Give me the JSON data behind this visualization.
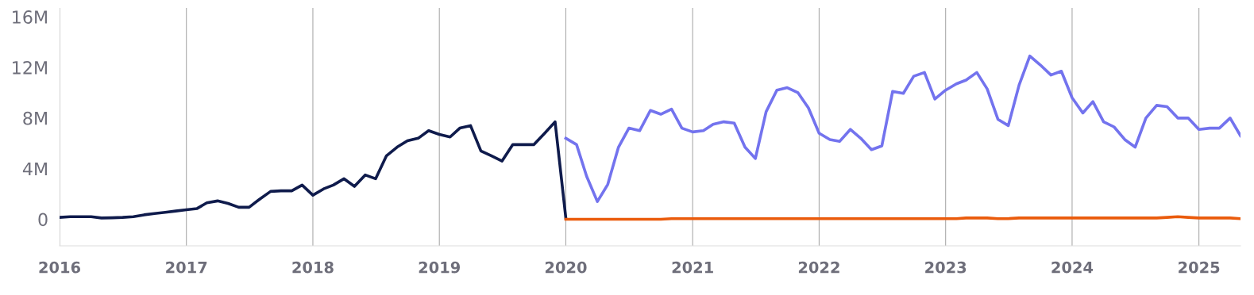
{
  "chart_data": {
    "type": "line",
    "grid": "x",
    "marker": "none",
    "line_style": "solid",
    "xlim": [
      "2016-01-01",
      "2025-05-01"
    ],
    "xticks": [
      {
        "value": "2016-01-01",
        "label": "2016"
      },
      {
        "value": "2017-01-01",
        "label": "2017"
      },
      {
        "value": "2018-01-01",
        "label": "2018"
      },
      {
        "value": "2019-01-01",
        "label": "2019"
      },
      {
        "value": "2020-01-01",
        "label": "2020"
      },
      {
        "value": "2021-01-01",
        "label": "2021"
      },
      {
        "value": "2022-01-01",
        "label": "2022"
      },
      {
        "value": "2023-01-01",
        "label": "2023"
      },
      {
        "value": "2024-01-01",
        "label": "2024"
      },
      {
        "value": "2025-01-01",
        "label": "2025"
      }
    ],
    "ylim": [
      -2.1,
      16.7
    ],
    "yticks": [
      0,
      {
        "value": 4,
        "label": "4M"
      },
      {
        "value": 8,
        "label": "8M"
      },
      {
        "value": 12,
        "label": "12M"
      },
      {
        "value": 16,
        "label": "16M"
      }
    ],
    "series": [
      {
        "color": "#0f1b4c",
        "x": [
          "2016-01",
          "2016-02",
          "2016-03",
          "2016-04",
          "2016-05",
          "2016-06",
          "2016-07",
          "2016-08",
          "2016-09",
          "2016-10",
          "2016-11",
          "2016-12",
          "2017-01",
          "2017-02",
          "2017-03",
          "2017-04",
          "2017-05",
          "2017-06",
          "2017-07",
          "2017-08",
          "2017-09",
          "2017-10",
          "2017-11",
          "2017-12",
          "2018-01",
          "2018-02",
          "2018-03",
          "2018-04",
          "2018-05",
          "2018-06",
          "2018-07",
          "2018-08",
          "2018-09",
          "2018-10",
          "2018-11",
          "2018-12",
          "2019-01",
          "2019-02",
          "2019-03",
          "2019-04",
          "2019-05",
          "2019-06",
          "2019-07",
          "2019-08",
          "2019-09",
          "2019-10",
          "2019-11",
          "2019-12",
          "2020-01"
        ],
        "values": [
          0.15,
          0.2,
          0.2,
          0.2,
          0.1,
          0.12,
          0.15,
          0.2,
          0.35,
          0.45,
          0.55,
          0.65,
          0.75,
          0.85,
          1.3,
          1.45,
          1.25,
          0.95,
          0.95,
          1.6,
          2.2,
          2.25,
          2.25,
          2.7,
          1.9,
          2.4,
          2.7,
          3.2,
          2.6,
          3.5,
          3.2,
          5.0,
          5.7,
          6.2,
          6.4,
          7.0,
          6.7,
          6.5,
          7.2,
          7.4,
          5.4,
          5.0,
          4.6,
          5.9,
          5.9,
          5.9,
          6.8,
          7.7,
          0.1
        ]
      },
      {
        "color": "#7373ee",
        "x": [
          "2020-01",
          "2020-02",
          "2020-03",
          "2020-04",
          "2020-05",
          "2020-06",
          "2020-07",
          "2020-08",
          "2020-09",
          "2020-10",
          "2020-11",
          "2020-12",
          "2021-01",
          "2021-02",
          "2021-03",
          "2021-04",
          "2021-05",
          "2021-06",
          "2021-07",
          "2021-08",
          "2021-09",
          "2021-10",
          "2021-11",
          "2021-12",
          "2022-01",
          "2022-02",
          "2022-03",
          "2022-04",
          "2022-05",
          "2022-06",
          "2022-07",
          "2022-08",
          "2022-09",
          "2022-10",
          "2022-11",
          "2022-12",
          "2023-01",
          "2023-02",
          "2023-03",
          "2023-04",
          "2023-05",
          "2023-06",
          "2023-07",
          "2023-08",
          "2023-09",
          "2023-10",
          "2023-11",
          "2023-12",
          "2024-01",
          "2024-02",
          "2024-03",
          "2024-04",
          "2024-05",
          "2024-06",
          "2024-07",
          "2024-08",
          "2024-09",
          "2024-10",
          "2024-11",
          "2024-12",
          "2025-01",
          "2025-02",
          "2025-03",
          "2025-04",
          "2025-05"
        ],
        "values": [
          6.4,
          5.9,
          3.4,
          1.4,
          2.75,
          5.7,
          7.2,
          7.0,
          8.6,
          8.3,
          8.7,
          7.2,
          6.9,
          7.0,
          7.5,
          7.7,
          7.6,
          5.7,
          4.8,
          8.5,
          10.2,
          10.4,
          10.0,
          8.8,
          6.8,
          6.3,
          6.15,
          7.1,
          6.4,
          5.5,
          5.8,
          10.1,
          9.95,
          11.3,
          11.6,
          9.5,
          10.2,
          10.7,
          11.0,
          11.6,
          10.3,
          7.9,
          7.4,
          10.6,
          12.9,
          12.2,
          11.4,
          11.7,
          9.6,
          8.4,
          9.3,
          7.7,
          7.3,
          6.3,
          5.7,
          8.0,
          9.0,
          8.9,
          8.0,
          8.0,
          7.1,
          7.2,
          7.2,
          8.0,
          6.6
        ]
      },
      {
        "color": "#ea5b0c",
        "x": [
          "2020-01",
          "2020-02",
          "2020-03",
          "2020-04",
          "2020-05",
          "2020-06",
          "2020-07",
          "2020-08",
          "2020-09",
          "2020-10",
          "2020-11",
          "2020-12",
          "2021-01",
          "2021-02",
          "2021-03",
          "2021-04",
          "2021-05",
          "2021-06",
          "2021-07",
          "2021-08",
          "2021-09",
          "2021-10",
          "2021-11",
          "2021-12",
          "2022-01",
          "2022-02",
          "2022-03",
          "2022-04",
          "2022-05",
          "2022-06",
          "2022-07",
          "2022-08",
          "2022-09",
          "2022-10",
          "2022-11",
          "2022-12",
          "2023-01",
          "2023-02",
          "2023-03",
          "2023-04",
          "2023-05",
          "2023-06",
          "2023-07",
          "2023-08",
          "2023-09",
          "2023-10",
          "2023-11",
          "2023-12",
          "2024-01",
          "2024-02",
          "2024-03",
          "2024-04",
          "2024-05",
          "2024-06",
          "2024-07",
          "2024-08",
          "2024-09",
          "2024-10",
          "2024-11",
          "2024-12",
          "2025-01",
          "2025-02",
          "2025-03",
          "2025-04",
          "2025-05"
        ],
        "values": [
          0,
          0,
          0,
          0,
          0,
          0,
          0,
          0,
          0,
          0,
          0.05,
          0.05,
          0.05,
          0.05,
          0.05,
          0.05,
          0.05,
          0.05,
          0.05,
          0.05,
          0.05,
          0.05,
          0.05,
          0.05,
          0.05,
          0.05,
          0.05,
          0.05,
          0.05,
          0.05,
          0.05,
          0.05,
          0.05,
          0.05,
          0.05,
          0.05,
          0.05,
          0.05,
          0.1,
          0.1,
          0.1,
          0.05,
          0.05,
          0.1,
          0.1,
          0.1,
          0.1,
          0.1,
          0.1,
          0.1,
          0.1,
          0.1,
          0.1,
          0.1,
          0.1,
          0.1,
          0.1,
          0.15,
          0.2,
          0.15,
          0.1,
          0.1,
          0.1,
          0.1,
          0.05
        ]
      }
    ]
  }
}
